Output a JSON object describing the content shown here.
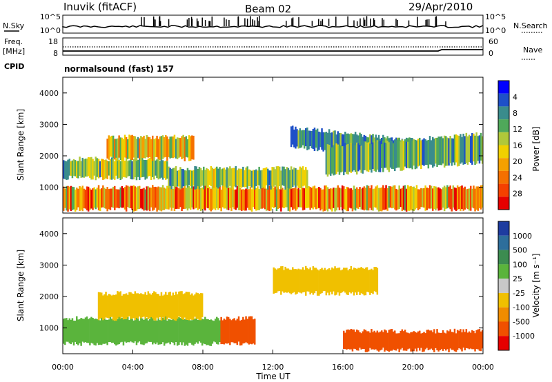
{
  "header": {
    "station": "Inuvik (fitACF)",
    "beam": "Beam 02",
    "date": "29/Apr/2010"
  },
  "strips": {
    "nsky_label": "N.Sky",
    "nsearch_label": "N.Search",
    "freq_label_1": "Freq.",
    "freq_label_2": "[MHz]",
    "nave_label": "Nave",
    "cpid_label": "CPID",
    "cpid_text": "normalsound (fast) 157",
    "noise_left_ticks": [
      "10^5",
      "10^0"
    ],
    "noise_right_ticks": [
      "10^5",
      "10^0"
    ],
    "freq_left_ticks": [
      "18",
      "8"
    ],
    "freq_right_ticks": [
      "60",
      "0"
    ]
  },
  "chart_data": [
    {
      "type": "heatmap",
      "name": "power",
      "ylabel": "Slant Range [km]",
      "yticks": [
        "1000",
        "2000",
        "3000",
        "4000"
      ],
      "xticks": [
        "00:00",
        "04:00",
        "08:00",
        "12:00",
        "16:00",
        "20:00",
        "00:00"
      ],
      "ylim": [
        180,
        4500
      ],
      "colorbar": {
        "label": "Power [dB]",
        "ticks": [
          "4",
          "8",
          "12",
          "16",
          "20",
          "24",
          "28"
        ],
        "colors": [
          "#0000ff",
          "#1e50c8",
          "#3a8c8c",
          "#4fa85a",
          "#b0c83a",
          "#f0d000",
          "#f5a000",
          "#f57000",
          "#f54000",
          "#e60000"
        ]
      },
      "bands": [
        {
          "t": [
            0,
            24
          ],
          "r": [
            300,
            1000
          ],
          "dir": 0,
          "value": 22
        },
        {
          "t": [
            0,
            6
          ],
          "r": [
            1300,
            1900
          ],
          "dir": 0,
          "value": 14
        },
        {
          "t": [
            2.5,
            7.5
          ],
          "r": [
            1900,
            2600
          ],
          "dir": 0,
          "value": 18
        },
        {
          "t": [
            6,
            14
          ],
          "r": [
            1000,
            1600
          ],
          "dir": 0,
          "value": 14
        },
        {
          "t": [
            13,
            20
          ],
          "r": [
            2300,
            2900
          ],
          "dir": -1,
          "value": 10
        },
        {
          "t": [
            15,
            24
          ],
          "r": [
            1400,
            2300
          ],
          "dir": 1,
          "value": 12
        }
      ]
    },
    {
      "type": "heatmap",
      "name": "velocity",
      "ylabel": "Slant Range [km]",
      "yticks": [
        "1000",
        "2000",
        "3000",
        "4000"
      ],
      "xticks": [
        "00:00",
        "04:00",
        "08:00",
        "12:00",
        "16:00",
        "20:00",
        "00:00"
      ],
      "xlabel": "Time UT",
      "ylim": [
        180,
        4500
      ],
      "colorbar": {
        "label": "Velocity [m s⁻¹]",
        "ticks": [
          "1000",
          "500",
          "100",
          "25",
          "-25",
          "-100",
          "-500",
          "-1000"
        ],
        "colors": [
          "#1e3ca0",
          "#2d6e9b",
          "#3c8c50",
          "#5ab43c",
          "#c8c8c8",
          "#f0c000",
          "#f08c00",
          "#f05000",
          "#e60000"
        ]
      },
      "bands": [
        {
          "t": [
            0,
            9
          ],
          "r": [
            500,
            1300
          ],
          "dir": 0,
          "value": 300
        },
        {
          "t": [
            9,
            11
          ],
          "r": [
            500,
            1300
          ],
          "dir": 0,
          "value": -250
        },
        {
          "t": [
            2,
            8
          ],
          "r": [
            1300,
            2100
          ],
          "dir": 0,
          "value": 0
        },
        {
          "t": [
            12,
            18
          ],
          "r": [
            2100,
            2900
          ],
          "dir": 0,
          "value": 0
        },
        {
          "t": [
            16,
            24
          ],
          "r": [
            300,
            900
          ],
          "dir": 0,
          "value": -200
        }
      ]
    }
  ]
}
